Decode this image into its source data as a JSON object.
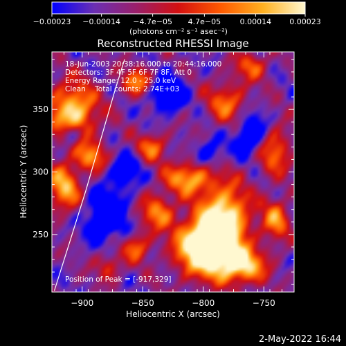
{
  "chart_data": {
    "type": "heatmap",
    "title": "Reconstructed RHESSI Image",
    "xlabel": "Heliocentric X (arcsec)",
    "ylabel": "Heliocentric Y (arcsec)",
    "xlim": [
      -925,
      -725
    ],
    "ylim": [
      204,
      396
    ],
    "x_ticks": [
      -900,
      -850,
      -800,
      -750
    ],
    "y_ticks": [
      250,
      300,
      350
    ],
    "x_tick_labels": [
      "−900",
      "−850",
      "−800",
      "−750"
    ],
    "y_tick_labels": [
      "250",
      "300",
      "350"
    ],
    "colorbar": {
      "range": [
        -0.00023,
        0.00023
      ],
      "ticks": [
        -0.00023,
        -0.00014,
        -4.7e-05,
        4.7e-05,
        0.00014,
        0.00023
      ],
      "tick_labels": [
        "−0.00023",
        "−0.00014",
        "−4.7e−05",
        "4.7e−05",
        "0.00014",
        "0.00023"
      ],
      "unit_label": "(photons cm⁻² s⁻¹ asec⁻²)",
      "colors": [
        "#0000ff",
        "#6b2fb3",
        "#9a1f6a",
        "#d41010",
        "#ff5a00",
        "#ffb020",
        "#fff8d0"
      ]
    },
    "annotations": [
      "18-Jun-2003 20:38:16.000 to 20:44:16.000",
      "Detectors: 3F 4F 5F 6F 7F 8F, Att 0",
      "Energy Range: 12.0 - 25.0 keV",
      "Clean    Total counts: 2.74E+03",
      "Position of Peak = [-917,329]"
    ],
    "limb_curve": [
      [
        -923,
        205
      ],
      [
        -910,
        245
      ],
      [
        -897,
        285
      ],
      [
        -885,
        325
      ],
      [
        -873,
        365
      ],
      [
        -865,
        390
      ]
    ],
    "emission_blobs": [
      {
        "x": -800,
        "y": 240,
        "sx": 16,
        "sy": 16,
        "amp": 1.0
      },
      {
        "x": -782,
        "y": 262,
        "sx": 14,
        "sy": 20,
        "amp": 0.8
      },
      {
        "x": -768,
        "y": 225,
        "sx": 14,
        "sy": 10,
        "amp": 0.7
      },
      {
        "x": -812,
        "y": 295,
        "sx": 14,
        "sy": 9,
        "amp": 0.6
      },
      {
        "x": -838,
        "y": 268,
        "sx": 10,
        "sy": 10,
        "amp": 0.5
      },
      {
        "x": -855,
        "y": 240,
        "sx": 8,
        "sy": 8,
        "amp": 0.45
      },
      {
        "x": -908,
        "y": 348,
        "sx": 14,
        "sy": 16,
        "amp": 0.75
      },
      {
        "x": -915,
        "y": 288,
        "sx": 10,
        "sy": 14,
        "amp": 0.6
      },
      {
        "x": -892,
        "y": 312,
        "sx": 9,
        "sy": 8,
        "amp": 0.5
      },
      {
        "x": -855,
        "y": 372,
        "sx": 9,
        "sy": 8,
        "amp": 0.5
      },
      {
        "x": -842,
        "y": 320,
        "sx": 9,
        "sy": 8,
        "amp": 0.45
      },
      {
        "x": -780,
        "y": 355,
        "sx": 12,
        "sy": 12,
        "amp": 0.45
      },
      {
        "x": -742,
        "y": 318,
        "sx": 10,
        "sy": 14,
        "amp": 0.5
      },
      {
        "x": -740,
        "y": 262,
        "sx": 8,
        "sy": 12,
        "amp": 0.5
      },
      {
        "x": -760,
        "y": 385,
        "sx": 10,
        "sy": 8,
        "amp": 0.4
      },
      {
        "x": -878,
        "y": 225,
        "sx": 8,
        "sy": 8,
        "amp": 0.35
      }
    ],
    "cool_blobs": [
      {
        "x": -880,
        "y": 265,
        "sx": 12,
        "sy": 14,
        "amp": 0.55
      },
      {
        "x": -830,
        "y": 362,
        "sx": 10,
        "sy": 10,
        "amp": 0.5
      },
      {
        "x": -760,
        "y": 330,
        "sx": 10,
        "sy": 12,
        "amp": 0.5
      },
      {
        "x": -910,
        "y": 330,
        "sx": 6,
        "sy": 6,
        "amp": 0.45
      },
      {
        "x": -865,
        "y": 300,
        "sx": 9,
        "sy": 9,
        "amp": 0.4
      },
      {
        "x": -795,
        "y": 315,
        "sx": 8,
        "sy": 8,
        "amp": 0.35
      }
    ]
  },
  "timestamp": "2-May-2022 16:44"
}
